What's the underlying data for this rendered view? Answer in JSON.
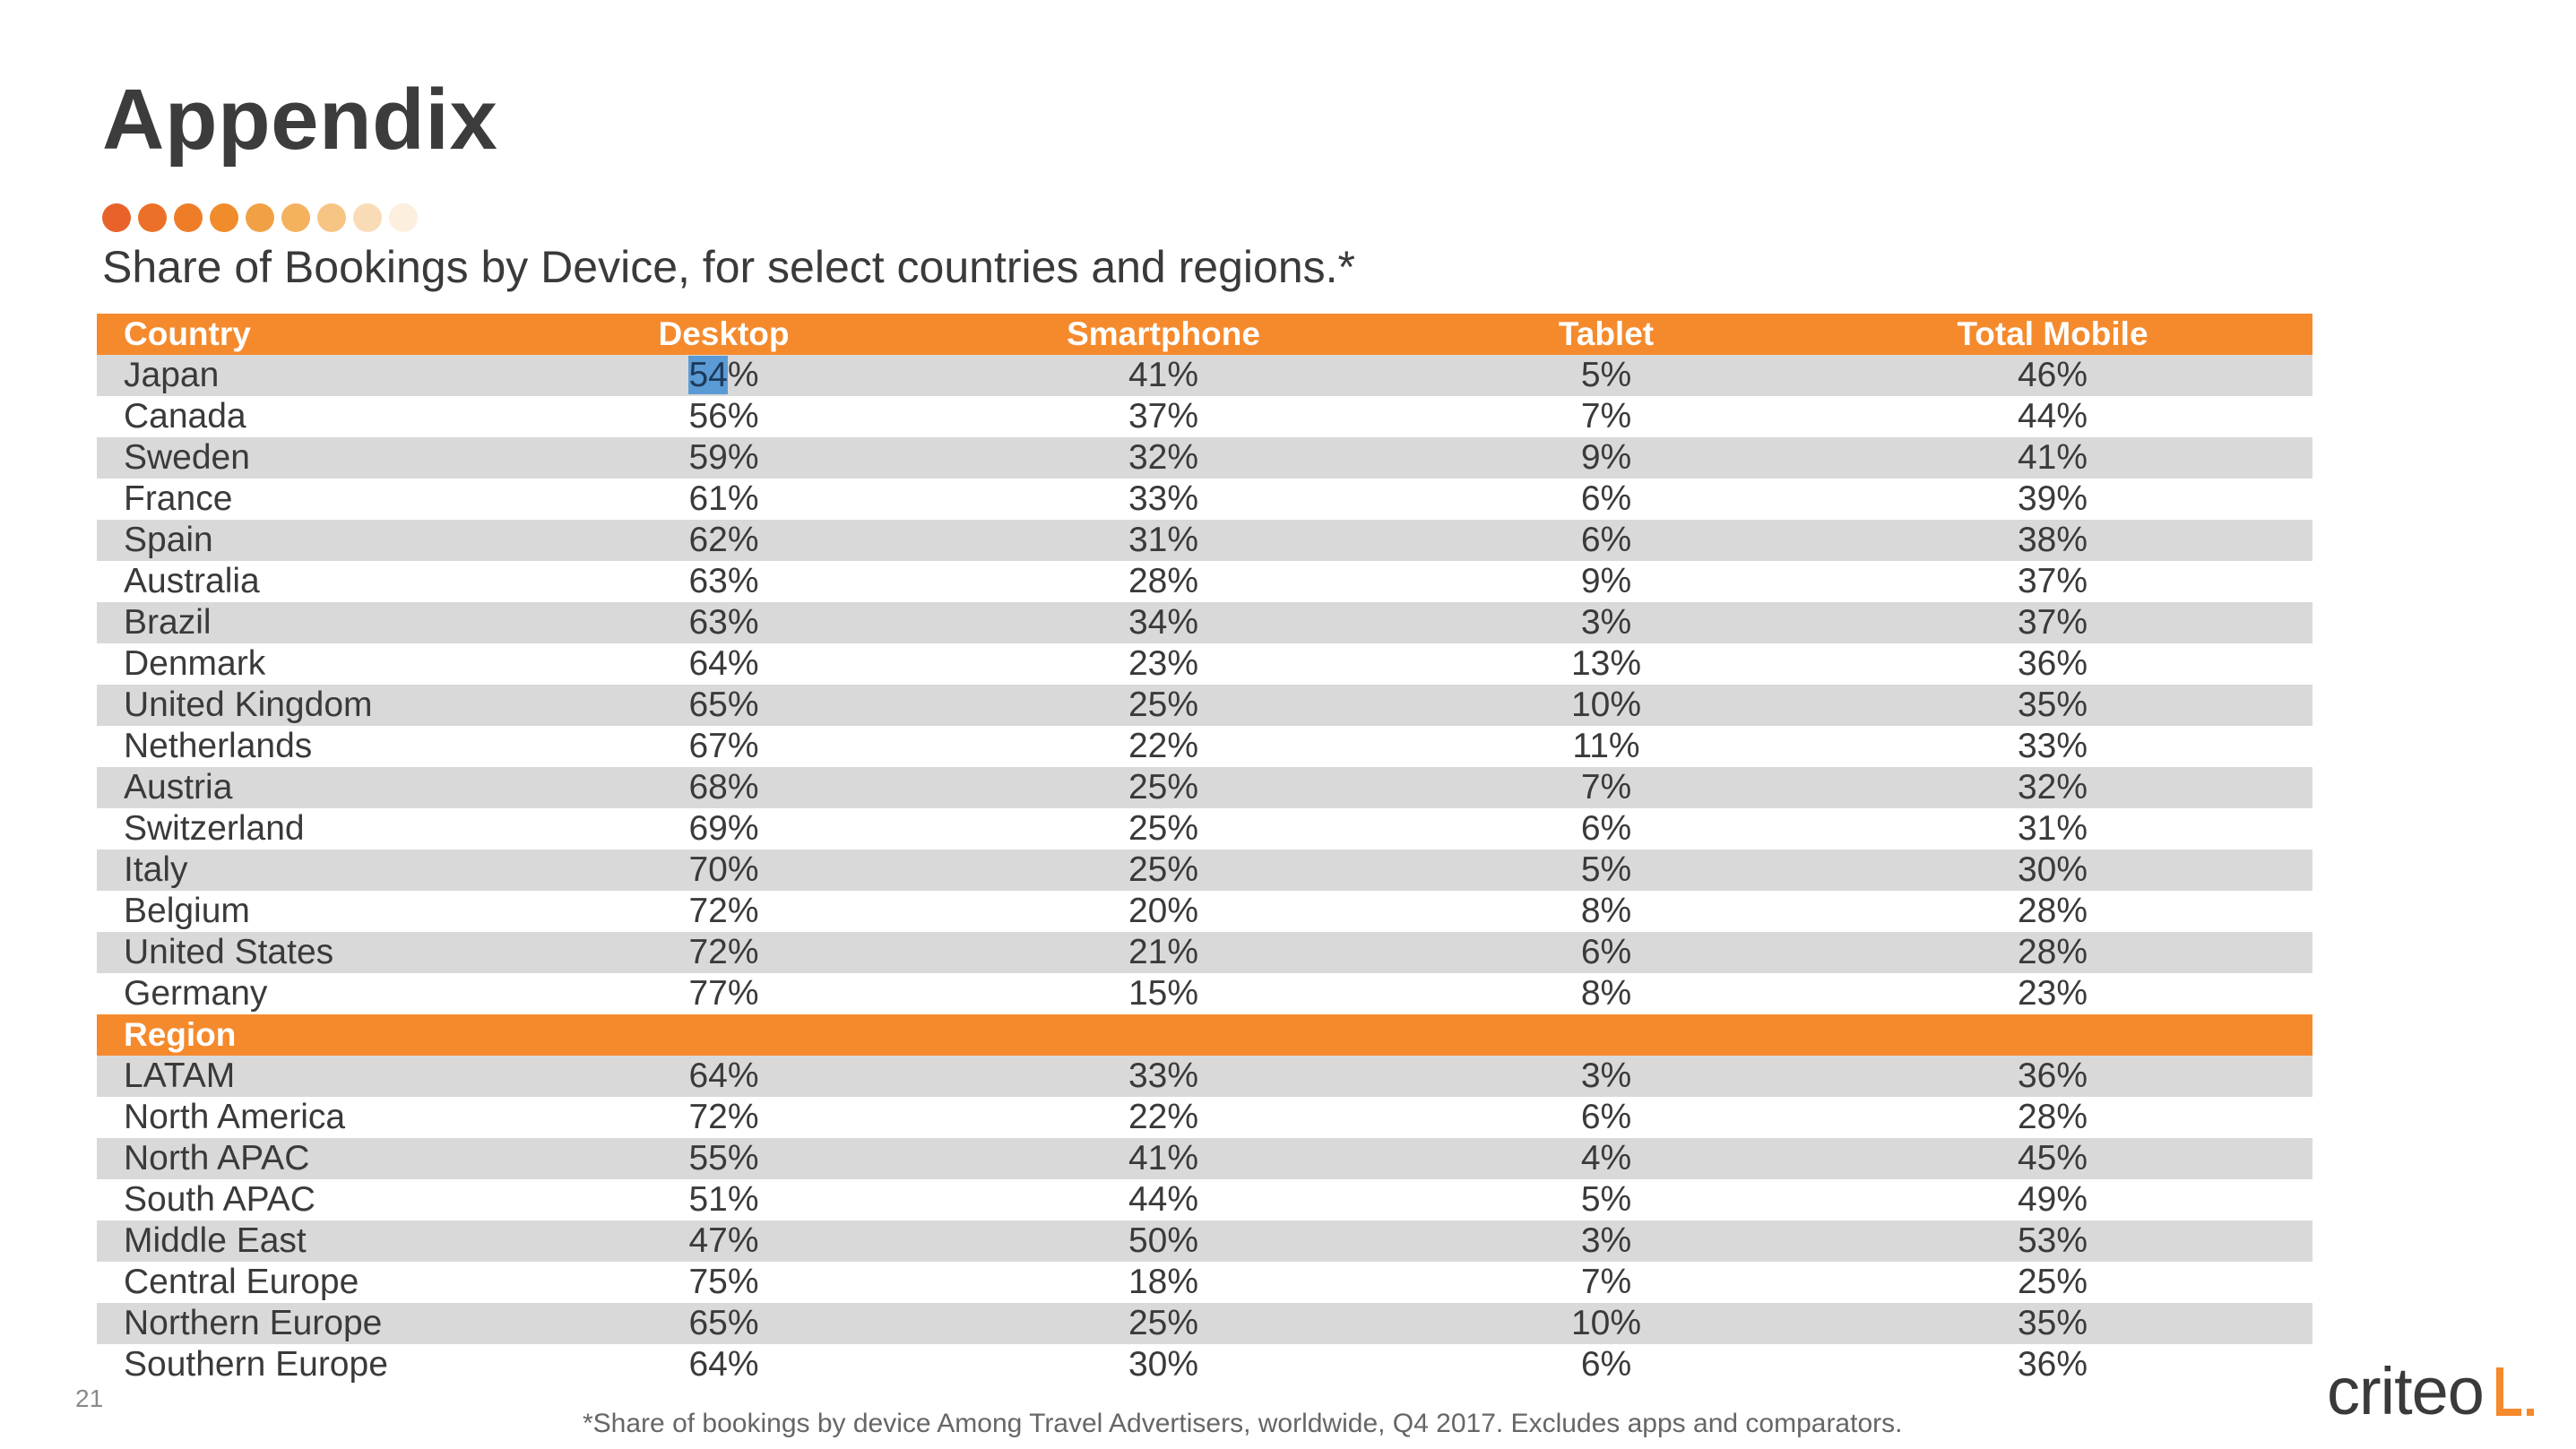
{
  "slide": {
    "title": "Appendix",
    "subtitle": "Share of Bookings by Device, for select countries and regions.*",
    "page_number": "21",
    "footnote": "*Share of bookings by device Among Travel Advertisers, worldwide, Q4 2017. Excludes apps and comparators.",
    "logo_text": "criteo",
    "dot_colors": [
      "#e8632a",
      "#ec7028",
      "#ef7d27",
      "#f18c2c",
      "#f2a046",
      "#f4b15e",
      "#f6c583",
      "#f9dcb5",
      "#fcefde"
    ]
  },
  "table": {
    "columns": [
      "Country",
      "Desktop",
      "Smartphone",
      "Tablet",
      "Total Mobile"
    ],
    "highlighted_text": "54",
    "highlighted_rest": "%",
    "countries": [
      {
        "name": "Japan",
        "desktop": "54%",
        "smartphone": "41%",
        "tablet": "5%",
        "total_mobile": "46%"
      },
      {
        "name": "Canada",
        "desktop": "56%",
        "smartphone": "37%",
        "tablet": "7%",
        "total_mobile": "44%"
      },
      {
        "name": "Sweden",
        "desktop": "59%",
        "smartphone": "32%",
        "tablet": "9%",
        "total_mobile": "41%"
      },
      {
        "name": "France",
        "desktop": "61%",
        "smartphone": "33%",
        "tablet": "6%",
        "total_mobile": "39%"
      },
      {
        "name": "Spain",
        "desktop": "62%",
        "smartphone": "31%",
        "tablet": "6%",
        "total_mobile": "38%"
      },
      {
        "name": "Australia",
        "desktop": "63%",
        "smartphone": "28%",
        "tablet": "9%",
        "total_mobile": "37%"
      },
      {
        "name": "Brazil",
        "desktop": "63%",
        "smartphone": "34%",
        "tablet": "3%",
        "total_mobile": "37%"
      },
      {
        "name": "Denmark",
        "desktop": "64%",
        "smartphone": "23%",
        "tablet": "13%",
        "total_mobile": "36%"
      },
      {
        "name": "United Kingdom",
        "desktop": "65%",
        "smartphone": "25%",
        "tablet": "10%",
        "total_mobile": "35%"
      },
      {
        "name": "Netherlands",
        "desktop": "67%",
        "smartphone": "22%",
        "tablet": "11%",
        "total_mobile": "33%"
      },
      {
        "name": "Austria",
        "desktop": "68%",
        "smartphone": "25%",
        "tablet": "7%",
        "total_mobile": "32%"
      },
      {
        "name": "Switzerland",
        "desktop": "69%",
        "smartphone": "25%",
        "tablet": "6%",
        "total_mobile": "31%"
      },
      {
        "name": "Italy",
        "desktop": "70%",
        "smartphone": "25%",
        "tablet": "5%",
        "total_mobile": "30%"
      },
      {
        "name": "Belgium",
        "desktop": "72%",
        "smartphone": "20%",
        "tablet": "8%",
        "total_mobile": "28%"
      },
      {
        "name": "United States",
        "desktop": "72%",
        "smartphone": "21%",
        "tablet": "6%",
        "total_mobile": "28%"
      },
      {
        "name": "Germany",
        "desktop": "77%",
        "smartphone": "15%",
        "tablet": "8%",
        "total_mobile": "23%"
      }
    ],
    "region_header": "Region",
    "regions": [
      {
        "name": "LATAM",
        "desktop": "64%",
        "smartphone": "33%",
        "tablet": "3%",
        "total_mobile": "36%"
      },
      {
        "name": "North America",
        "desktop": "72%",
        "smartphone": "22%",
        "tablet": "6%",
        "total_mobile": "28%"
      },
      {
        "name": "North APAC",
        "desktop": "55%",
        "smartphone": "41%",
        "tablet": "4%",
        "total_mobile": "45%"
      },
      {
        "name": "South APAC",
        "desktop": "51%",
        "smartphone": "44%",
        "tablet": "5%",
        "total_mobile": "49%"
      },
      {
        "name": "Middle East",
        "desktop": "47%",
        "smartphone": "50%",
        "tablet": "3%",
        "total_mobile": "53%"
      },
      {
        "name": "Central Europe",
        "desktop": "75%",
        "smartphone": "18%",
        "tablet": "7%",
        "total_mobile": "25%"
      },
      {
        "name": "Northern Europe",
        "desktop": "65%",
        "smartphone": "25%",
        "tablet": "10%",
        "total_mobile": "35%"
      },
      {
        "name": "Southern Europe",
        "desktop": "64%",
        "smartphone": "30%",
        "tablet": "6%",
        "total_mobile": "36%"
      }
    ]
  }
}
